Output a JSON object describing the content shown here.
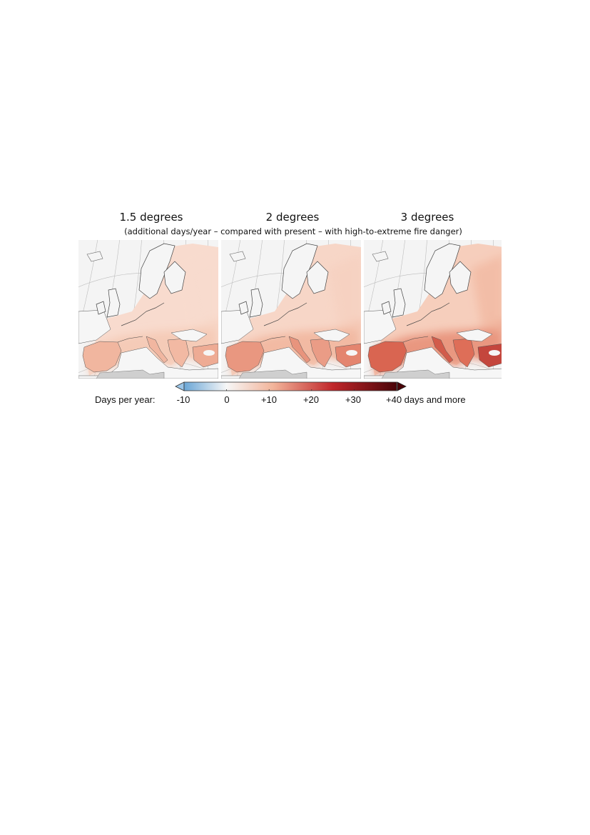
{
  "panels": [
    {
      "id": "p15",
      "title": "1.5 degrees",
      "intensity": 0.38
    },
    {
      "id": "p20",
      "title": "2 degrees",
      "intensity": 0.62
    },
    {
      "id": "p30",
      "title": "3 degrees",
      "intensity": 1.0
    }
  ],
  "subtitle": "(additional days/year – compared with present – with high-to-extreme fire danger)",
  "legend": {
    "label": "Days per year:",
    "ticks": [
      "-10",
      "0",
      "+10",
      "+20",
      "+30",
      "+40 days and more"
    ],
    "tick_values": [
      -10,
      0,
      10,
      20,
      30,
      40
    ],
    "range": [
      -10,
      40
    ],
    "colors": {
      "low": "#6aa6d6",
      "zero": "#f7f7f7",
      "mid": "#f2b49a",
      "high": "#c0262a",
      "max": "#4a0408"
    }
  }
}
